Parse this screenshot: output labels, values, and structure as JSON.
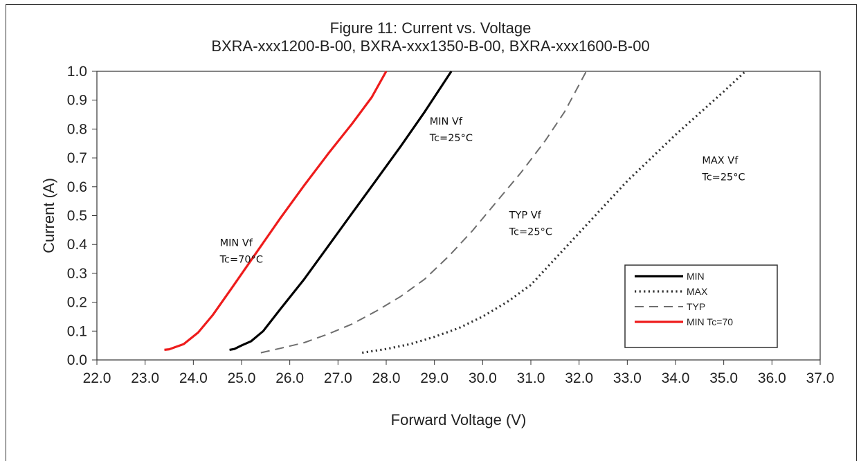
{
  "chart_data": {
    "type": "line",
    "title": "Figure 11:  Current vs. Voltage",
    "subtitle": "BXRA-xxx1200-B-00, BXRA-xxx1350-B-00, BXRA-xxx1600-B-00",
    "xlabel": "Forward  Voltage  (V)",
    "ylabel": "Current  (A)",
    "xlim": [
      22.0,
      37.0
    ],
    "ylim": [
      0.0,
      1.0
    ],
    "x_ticks": [
      "22.0",
      "23.0",
      "24.0",
      "25.0",
      "26.0",
      "27.0",
      "28.0",
      "29.0",
      "30.0",
      "31.0",
      "32.0",
      "33.0",
      "34.0",
      "35.0",
      "36.0",
      "37.0"
    ],
    "y_ticks": [
      "0.0",
      "0.1",
      "0.2",
      "0.3",
      "0.4",
      "0.5",
      "0.6",
      "0.7",
      "0.8",
      "0.9",
      "1.0"
    ],
    "grid": false,
    "legend_position": "bottom-right",
    "series": [
      {
        "name": "MIN",
        "color": "#000000",
        "style": "solid",
        "points": [
          [
            24.75,
            0.035
          ],
          [
            24.85,
            0.038
          ],
          [
            25.0,
            0.05
          ],
          [
            25.2,
            0.065
          ],
          [
            25.45,
            0.1
          ],
          [
            25.8,
            0.175
          ],
          [
            26.3,
            0.28
          ],
          [
            26.8,
            0.395
          ],
          [
            27.3,
            0.51
          ],
          [
            27.8,
            0.625
          ],
          [
            28.3,
            0.74
          ],
          [
            28.8,
            0.86
          ],
          [
            29.35,
            1.0
          ]
        ]
      },
      {
        "name": "MAX",
        "color": "#333333",
        "style": "dotted",
        "points": [
          [
            27.5,
            0.025
          ],
          [
            28.0,
            0.038
          ],
          [
            28.5,
            0.055
          ],
          [
            29.0,
            0.08
          ],
          [
            29.5,
            0.11
          ],
          [
            30.0,
            0.15
          ],
          [
            30.5,
            0.2
          ],
          [
            31.0,
            0.26
          ],
          [
            31.5,
            0.35
          ],
          [
            32.0,
            0.44
          ],
          [
            32.5,
            0.53
          ],
          [
            33.0,
            0.62
          ],
          [
            33.5,
            0.7
          ],
          [
            34.0,
            0.78
          ],
          [
            34.5,
            0.855
          ],
          [
            35.0,
            0.93
          ],
          [
            35.45,
            1.0
          ]
        ]
      },
      {
        "name": "TYP",
        "color": "#6e6e6e",
        "style": "dashed",
        "points": [
          [
            25.4,
            0.025
          ],
          [
            25.8,
            0.04
          ],
          [
            26.3,
            0.06
          ],
          [
            26.8,
            0.09
          ],
          [
            27.3,
            0.125
          ],
          [
            27.8,
            0.17
          ],
          [
            28.3,
            0.22
          ],
          [
            28.8,
            0.28
          ],
          [
            29.3,
            0.36
          ],
          [
            29.8,
            0.45
          ],
          [
            30.3,
            0.55
          ],
          [
            30.8,
            0.65
          ],
          [
            31.3,
            0.76
          ],
          [
            31.7,
            0.86
          ],
          [
            32.15,
            1.0
          ]
        ]
      },
      {
        "name": "MIN Tc=70",
        "color": "#ee1c1c",
        "style": "solid",
        "points": [
          [
            23.4,
            0.035
          ],
          [
            23.5,
            0.037
          ],
          [
            23.8,
            0.055
          ],
          [
            24.1,
            0.095
          ],
          [
            24.4,
            0.155
          ],
          [
            24.8,
            0.25
          ],
          [
            25.3,
            0.37
          ],
          [
            25.8,
            0.49
          ],
          [
            26.3,
            0.605
          ],
          [
            26.8,
            0.715
          ],
          [
            27.3,
            0.82
          ],
          [
            27.7,
            0.91
          ],
          [
            28.0,
            1.0
          ]
        ]
      }
    ],
    "annotations": [
      {
        "lines": [
          "MIN Vf",
          "Tc=70°C"
        ],
        "x": 24.55,
        "y": 0.395
      },
      {
        "lines": [
          "MIN Vf",
          "Tc=25°C"
        ],
        "x": 28.9,
        "y": 0.815
      },
      {
        "lines": [
          "TYP Vf",
          "Tc=25°C"
        ],
        "x": 30.55,
        "y": 0.49
      },
      {
        "lines": [
          "MAX Vf",
          "Tc=25°C"
        ],
        "x": 34.55,
        "y": 0.68
      }
    ]
  }
}
